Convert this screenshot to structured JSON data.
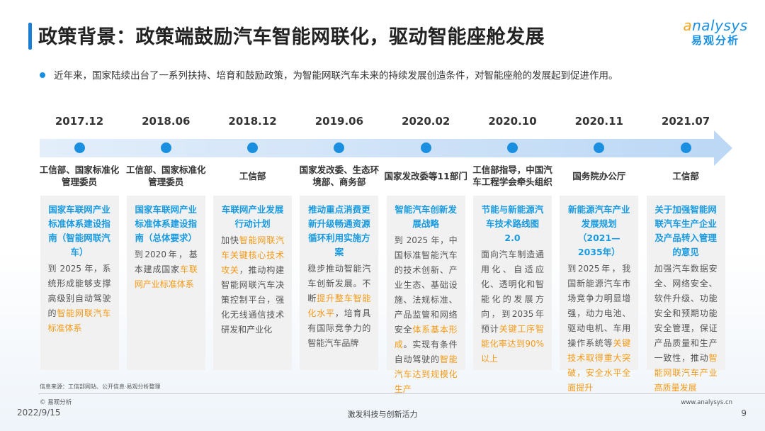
{
  "header": {
    "title": "政策背景：政策端鼓励汽车智能网联化，驱动智能座舱发展",
    "logo_en_a": "a",
    "logo_en_rest": "nalysys",
    "logo_cn": "易观分析"
  },
  "intro": "近年来，国家陆续出台了一系列扶持、培育和鼓励政策，为智能网联汽车未来的持续发展创造条件，对智能座舱的发展起到促进作用。",
  "colors": {
    "accent": "#1a8fe0",
    "highlight": "#f59a17",
    "card": "#f1f1f2"
  },
  "timeline": [
    {
      "date": "2017.12",
      "dept": "工信部、国家标准化管理委员",
      "title": "国家车联网产业标准体系建设指南（智能网联汽车）",
      "body": [
        {
          "t": "到 2025 年，系统形成能够支撑高级别自动驾驶的"
        },
        {
          "t": "智能网联汽车标准体系",
          "h": true
        }
      ]
    },
    {
      "date": "2018.06",
      "dept": "工信部、国家标准化管理委员",
      "title": "国家车联网产业标准体系建设指南（总体要求）",
      "body": [
        {
          "t": "到2020年，基本建成国家"
        },
        {
          "t": "车联网产业标准体系",
          "h": true
        }
      ]
    },
    {
      "date": "2018.12",
      "dept": "工信部",
      "title": "车联网产业发展行动计划",
      "body": [
        {
          "t": "加快"
        },
        {
          "t": "智能网联汽车关键核心技术攻关",
          "h": true
        },
        {
          "t": "，推动构建智能网联汽车决策控制平台，强化无线通信技术研发和产业化"
        }
      ]
    },
    {
      "date": "2019.06",
      "dept": "国家发改委、生态环境部、商务部",
      "title": "推动重点消费更新升级畅通资源循环利用实施方案",
      "body": [
        {
          "t": "稳步推动智能汽车创新发展。不断"
        },
        {
          "t": "提升整车智能化水平",
          "h": true
        },
        {
          "t": "，培育具有国际竞争力的智能汽车品牌"
        }
      ]
    },
    {
      "date": "2020.02",
      "dept": "国家发改委等11部门",
      "title": "智能汽车创新发展战略",
      "body": [
        {
          "t": "到 2025 年，中国标准智能汽车的技术创新、产业生态、基础设施、法规标准、产品监管和网络安全"
        },
        {
          "t": "体系基本形成",
          "h": true
        },
        {
          "t": "。实现有条件自动驾驶的"
        },
        {
          "t": "智能汽车达到规模化生产",
          "h": true
        }
      ]
    },
    {
      "date": "2020.10",
      "dept": "工信部指导，中国汽车工程学会牵头组织",
      "title": "节能与新能源汽车技术路线图2.0",
      "body": [
        {
          "t": "面向汽车制造通用化、自适应化、透明化和智能化的发展方向，到2035年预计"
        },
        {
          "t": "关键工序智能化率达到90%以上",
          "h": true
        }
      ]
    },
    {
      "date": "2020.11",
      "dept": "国务院办公厅",
      "title": "新能源汽车产业发展规划（2021—2035年）",
      "body": [
        {
          "t": "到2025年，我国新能源汽车市场竞争力明显增强，动力电池、驱动电机、车用操作系统等"
        },
        {
          "t": "关键技术取得重大突破，安全水平全面提升",
          "h": true
        }
      ]
    },
    {
      "date": "2021.07",
      "dept": "工信部",
      "title": "关于加强智能网联汽车生产企业及产品转入管理的意见",
      "body": [
        {
          "t": "加强汽车数据安全、网络安全、软件升级、功能安全和预期功能安全管理，保证产品质量和生产一致性，推动"
        },
        {
          "t": "智能网联汽车产业高质量发展",
          "h": true
        }
      ]
    }
  ],
  "footer": {
    "source": "信息来源：工信部网站、公开信息·易观分析整理",
    "copyright": "© 易观分析",
    "date": "2022/9/15",
    "slogan": "激发科技与创新活力",
    "url": "www.analysys.cn",
    "page": "9"
  }
}
